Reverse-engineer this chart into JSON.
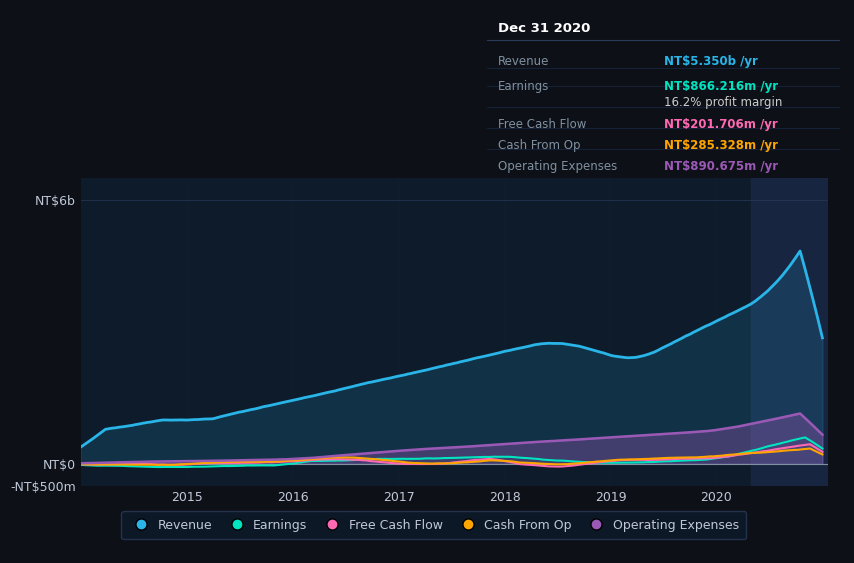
{
  "bg_color": "#0d1117",
  "plot_bg_color": "#0d1b2a",
  "highlight_bg": "#1a2744",
  "grid_color": "#2a3a5a",
  "text_color": "#c0c8d8",
  "title_color": "#ffffff",
  "ylim": [
    -500000000,
    6500000000
  ],
  "yticks": [
    -500000000,
    0,
    6000000000
  ],
  "ytick_labels": [
    "-NT$500m",
    "NT$0",
    "NT$6b"
  ],
  "xtick_labels": [
    "2015",
    "2016",
    "2017",
    "2018",
    "2019",
    "2020"
  ],
  "revenue_color": "#29b5e8",
  "earnings_color": "#00e5c0",
  "fcf_color": "#ff69b4",
  "cashfromop_color": "#ffa500",
  "opex_color": "#9b59b6",
  "legend_items": [
    "Revenue",
    "Earnings",
    "Free Cash Flow",
    "Cash From Op",
    "Operating Expenses"
  ],
  "legend_colors": [
    "#29b5e8",
    "#00e5c0",
    "#ff69b4",
    "#ffa500",
    "#9b59b6"
  ],
  "tooltip_title": "Dec 31 2020",
  "tooltip_rows": [
    {
      "label": "Revenue",
      "value": "NT$5.350b /yr",
      "color": "#29b5e8"
    },
    {
      "label": "Earnings",
      "value": "NT$866.216m /yr",
      "color": "#00e5c0"
    },
    {
      "label": "",
      "value": "16.2% profit margin",
      "color": "#cccccc"
    },
    {
      "label": "Free Cash Flow",
      "value": "NT$201.706m /yr",
      "color": "#ff69b4"
    },
    {
      "label": "Cash From Op",
      "value": "NT$285.328m /yr",
      "color": "#ffa500"
    },
    {
      "label": "Operating Expenses",
      "value": "NT$890.675m /yr",
      "color": "#9b59b6"
    }
  ]
}
